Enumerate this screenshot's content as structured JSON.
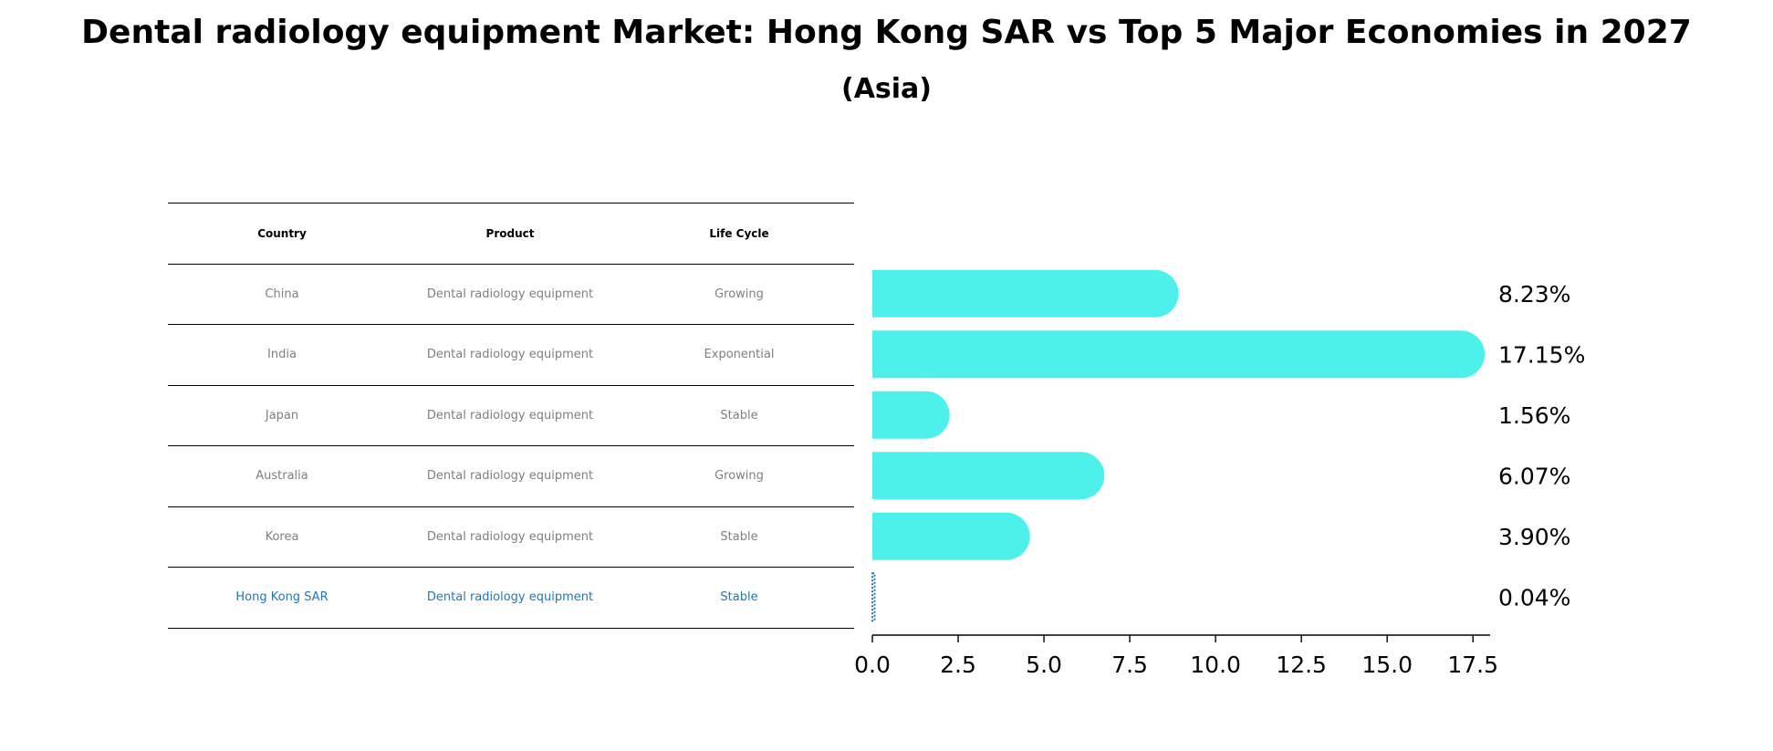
{
  "chart_data": {
    "type": "bar",
    "orientation": "horizontal",
    "title": "Dental radiology equipment Market: Hong Kong SAR vs Top 5 Major Economies in 2027",
    "subtitle": "(Asia)",
    "categories": [
      "China",
      "India",
      "Japan",
      "Australia",
      "Korea",
      "Hong Kong SAR"
    ],
    "values": [
      8.23,
      17.15,
      1.56,
      6.07,
      3.9,
      0.04
    ],
    "value_labels": [
      "8.23%",
      "17.15%",
      "1.56%",
      "6.07%",
      "3.90%",
      "0.04%"
    ],
    "xlim": [
      0,
      18
    ],
    "xticks": [
      0.0,
      2.5,
      5.0,
      7.5,
      10.0,
      12.5,
      15.0,
      17.5
    ],
    "xtick_labels": [
      "0.0",
      "2.5",
      "5.0",
      "7.5",
      "10.0",
      "12.5",
      "15.0",
      "17.5"
    ],
    "grid": false,
    "bar_color": "#4ef0eb",
    "highlight_color": "#1f77b4",
    "highlight_index": 5
  },
  "table": {
    "headers": [
      "Country",
      "Product",
      "Life Cycle"
    ],
    "rows": [
      [
        "China",
        "Dental radiology equipment",
        "Growing"
      ],
      [
        "India",
        "Dental radiology equipment",
        "Exponential"
      ],
      [
        "Japan",
        "Dental radiology equipment",
        "Stable"
      ],
      [
        "Australia",
        "Dental radiology equipment",
        "Growing"
      ],
      [
        "Korea",
        "Dental radiology equipment",
        "Stable"
      ],
      [
        "Hong Kong SAR",
        "Dental radiology equipment",
        "Stable"
      ]
    ]
  }
}
